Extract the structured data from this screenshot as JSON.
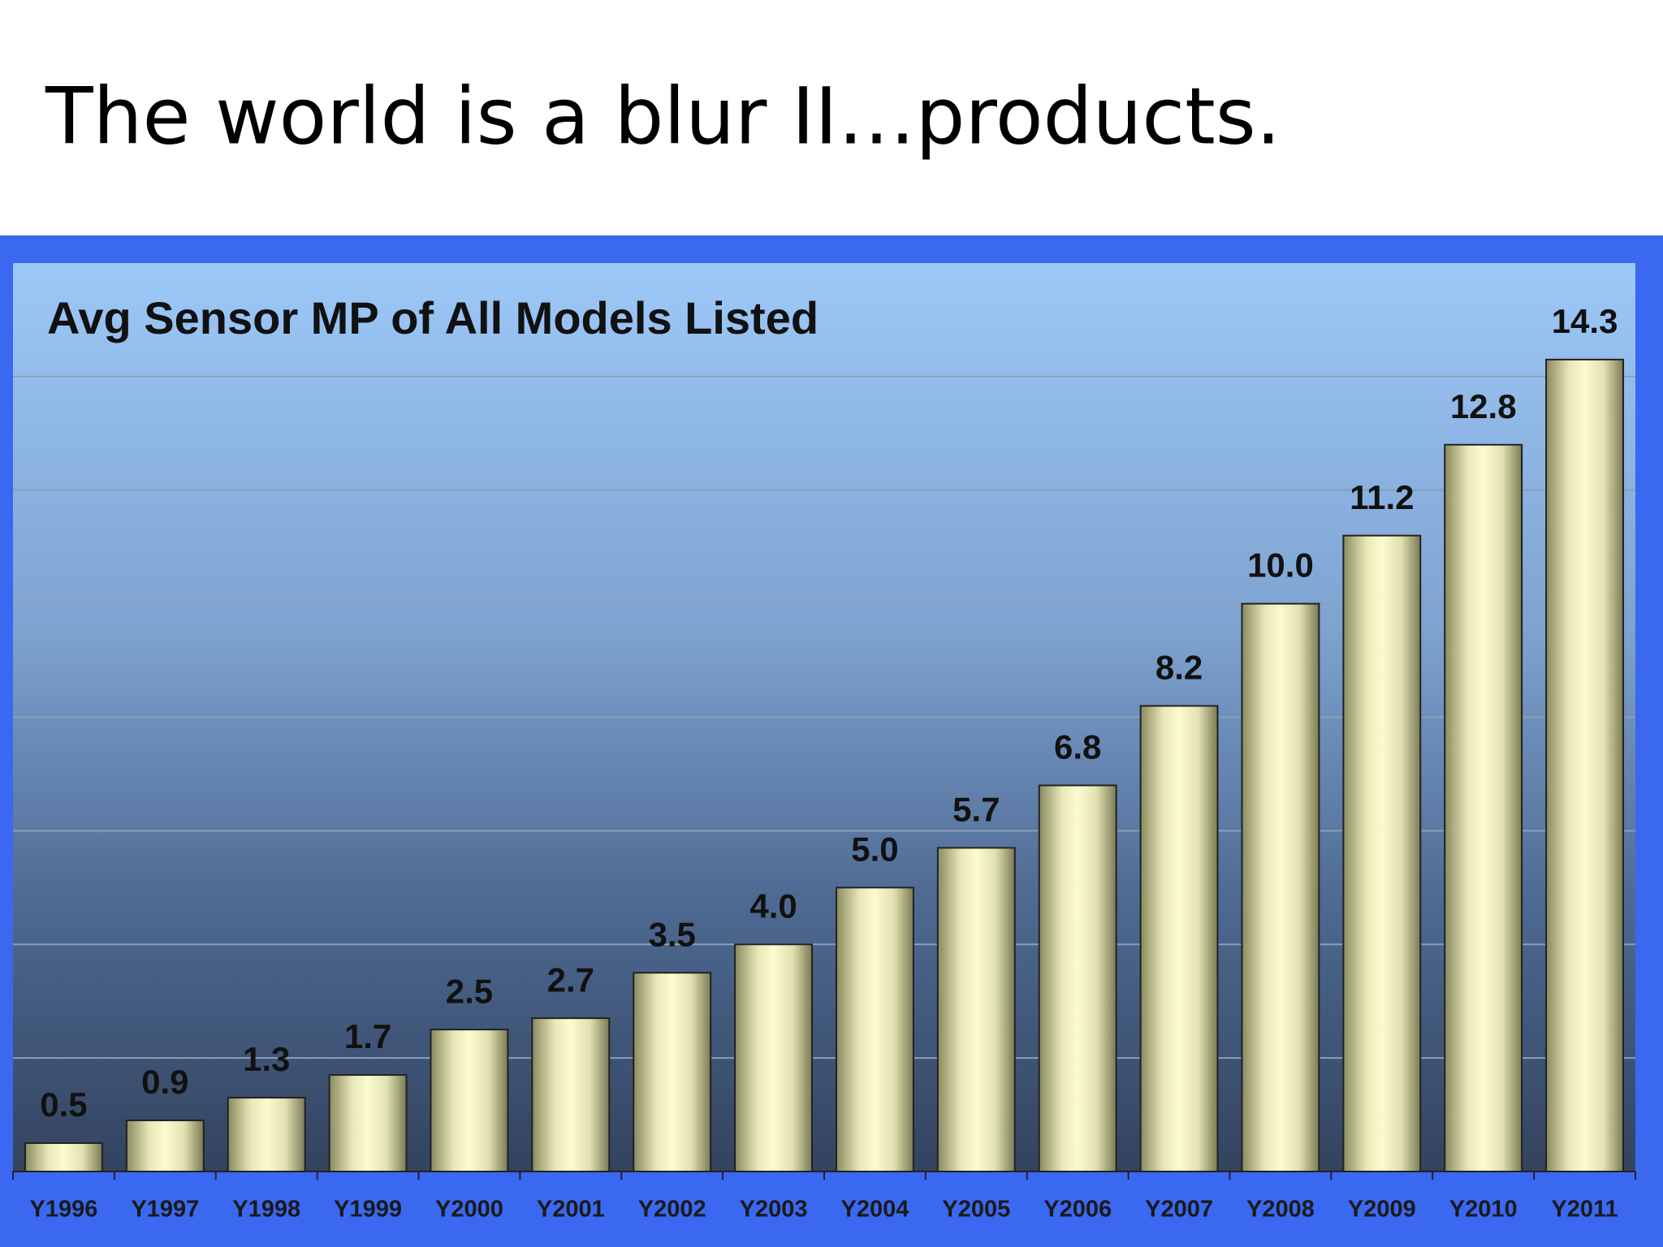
{
  "slide_title": "The world is a blur II…products.",
  "chart_data": {
    "type": "bar",
    "title": "Avg Sensor MP of All Models Listed",
    "categories": [
      "Y1996",
      "Y1997",
      "Y1998",
      "Y1999",
      "Y2000",
      "Y2001",
      "Y2002",
      "Y2003",
      "Y2004",
      "Y2005",
      "Y2006",
      "Y2007",
      "Y2008",
      "Y2009",
      "Y2010",
      "Y2011"
    ],
    "values": [
      0.5,
      0.9,
      1.3,
      1.7,
      2.5,
      2.7,
      3.5,
      4.0,
      5.0,
      5.7,
      6.8,
      8.2,
      10.0,
      11.2,
      12.8,
      14.3
    ],
    "value_labels": [
      "0.5",
      "0.9",
      "1.3",
      "1.7",
      "2.5",
      "2.7",
      "3.5",
      "4.0",
      "5.0",
      "5.7",
      "6.8",
      "8.2",
      "10.0",
      "11.2",
      "12.8",
      "14.3"
    ],
    "color": "#f5f5c0",
    "ylim": [
      0,
      16
    ],
    "grid_lines": [
      2,
      4,
      6,
      8,
      10,
      12,
      14
    ],
    "grid": true
  }
}
